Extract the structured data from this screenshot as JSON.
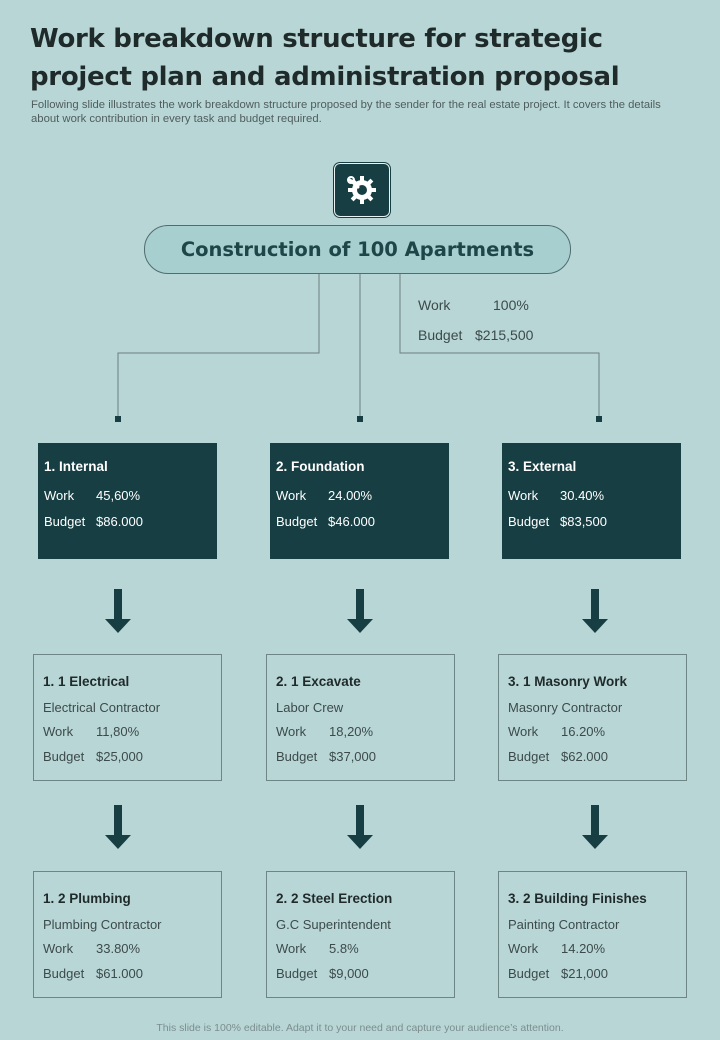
{
  "title": "Work breakdown structure for strategic project plan and administration proposal",
  "subtitle": "Following slide illustrates the work breakdown structure proposed by the sender for the real estate project. It covers the details about work contribution in every  task and budget required.",
  "root": {
    "icon": "construction-gear-icon",
    "label": "Construction of 100 Apartments",
    "work_label": "Work",
    "work_value": "100%",
    "budget_label": "Budget",
    "budget_value": "$215,500"
  },
  "branches": [
    {
      "name": "1. Internal",
      "work_label": "Work",
      "work": "45,60%",
      "budget_label": "Budget",
      "budget": "$86.000",
      "tasks": [
        {
          "name": "1. 1 Electrical",
          "desc": "Electrical Contractor",
          "work_label": "Work",
          "work": "11,80%",
          "budget_label": "Budget",
          "budget": "$25,000"
        },
        {
          "name": "1. 2 Plumbing",
          "desc": "Plumbing Contractor",
          "work_label": "Work",
          "work": "33.80%",
          "budget_label": "Budget",
          "budget": "$61.000"
        }
      ]
    },
    {
      "name": "2. Foundation",
      "work_label": "Work",
      "work": "24.00%",
      "budget_label": "Budget",
      "budget": "$46.000",
      "tasks": [
        {
          "name": "2. 1 Excavate",
          "desc": "Labor Crew",
          "work_label": "Work",
          "work": "18,20%",
          "budget_label": "Budget",
          "budget": "$37,000"
        },
        {
          "name": "2. 2 Steel Erection",
          "desc": "G.C Superintendent",
          "work_label": "Work",
          "work": "5.8%",
          "budget_label": "Budget",
          "budget": "$9,000"
        }
      ]
    },
    {
      "name": "3. External",
      "work_label": "Work",
      "work": "30.40%",
      "budget_label": "Budget",
      "budget": "$83,500",
      "tasks": [
        {
          "name": "3. 1 Masonry Work",
          "desc": "Masonry  Contractor",
          "work_label": "Work",
          "work": "16.20%",
          "budget_label": "Budget",
          "budget": "$62.000"
        },
        {
          "name": "3. 2 Building Finishes",
          "desc": "Painting Contractor",
          "work_label": "Work",
          "work": "14.20%",
          "budget_label": "Budget",
          "budget": "$21,000"
        }
      ]
    }
  ],
  "footer": "This slide is 100% editable. Adapt it to your need and capture your audience’s attention.",
  "colors": {
    "background": "#b9d6d7",
    "dark_box": "#173f43",
    "root_fill": "#a7cfd0",
    "arrow": "#173f43"
  }
}
